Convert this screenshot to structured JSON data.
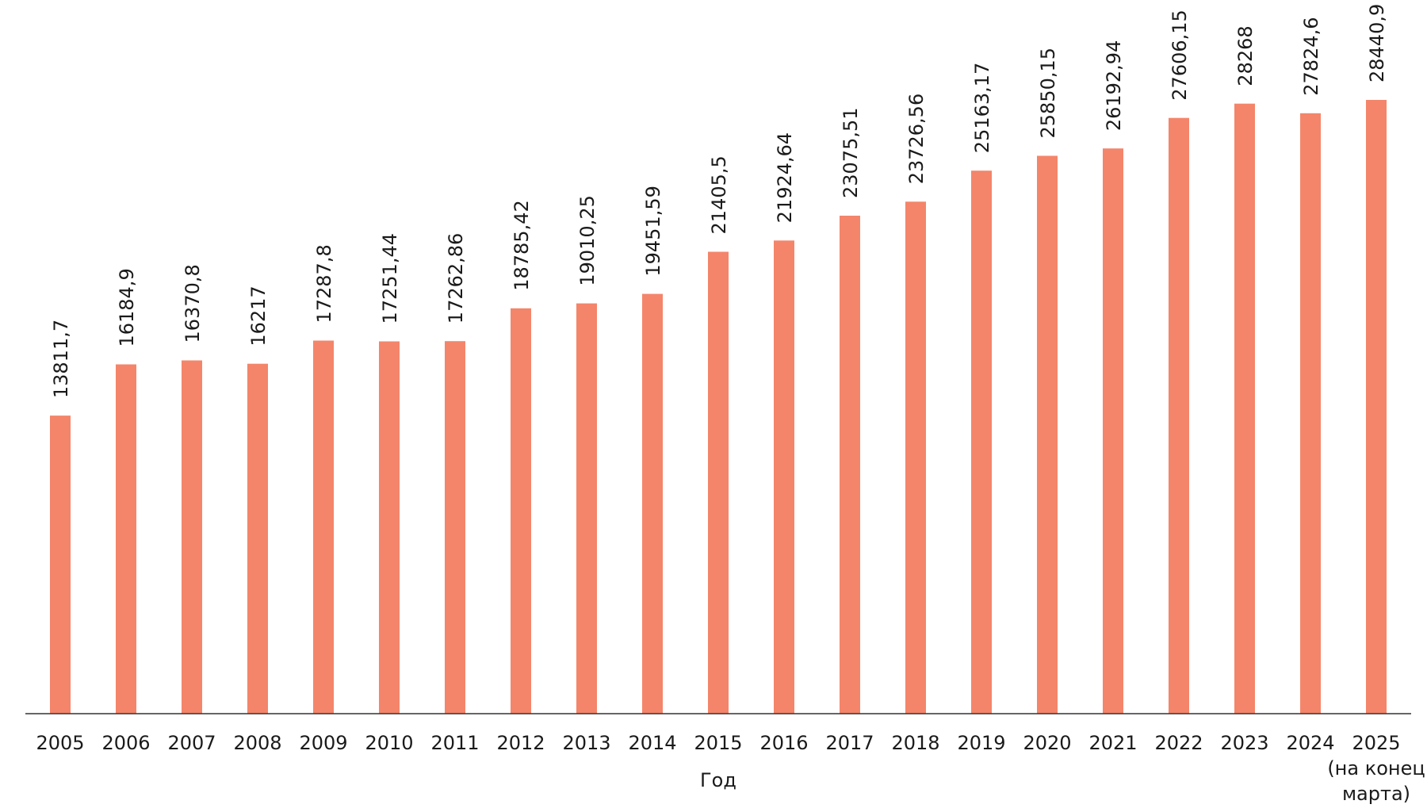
{
  "chart_data": {
    "type": "bar",
    "title": "",
    "xlabel": "Год",
    "ylabel": "",
    "categories": [
      "2005",
      "2006",
      "2007",
      "2008",
      "2009",
      "2010",
      "2011",
      "2012",
      "2013",
      "2014",
      "2015",
      "2016",
      "2017",
      "2018",
      "2019",
      "2020",
      "2021",
      "2022",
      "2023",
      "2024",
      "2025\n(на конец\nмарта)"
    ],
    "values": [
      13811.7,
      16184.9,
      16370.8,
      16217,
      17287.8,
      17251.44,
      17262.86,
      18785.42,
      19010.25,
      19451.59,
      21405.5,
      21924.64,
      23075.51,
      23726.56,
      25163.17,
      25850.15,
      26192.94,
      27606.15,
      28268,
      27824.6,
      28440.9
    ],
    "value_labels": [
      "13811,7",
      "16184,9",
      "16370,8",
      "16217",
      "17287,8",
      "17251,44",
      "17262,86",
      "18785,42",
      "19010,25",
      "19451,59",
      "21405,5",
      "21924,64",
      "23075,51",
      "23726,56",
      "25163,17",
      "25850,15",
      "26192,94",
      "27606,15",
      "28268",
      "27824,6",
      "28440,9"
    ],
    "ylim": [
      0,
      28440.9
    ],
    "grid": false,
    "bar_color": "#f4856a"
  }
}
